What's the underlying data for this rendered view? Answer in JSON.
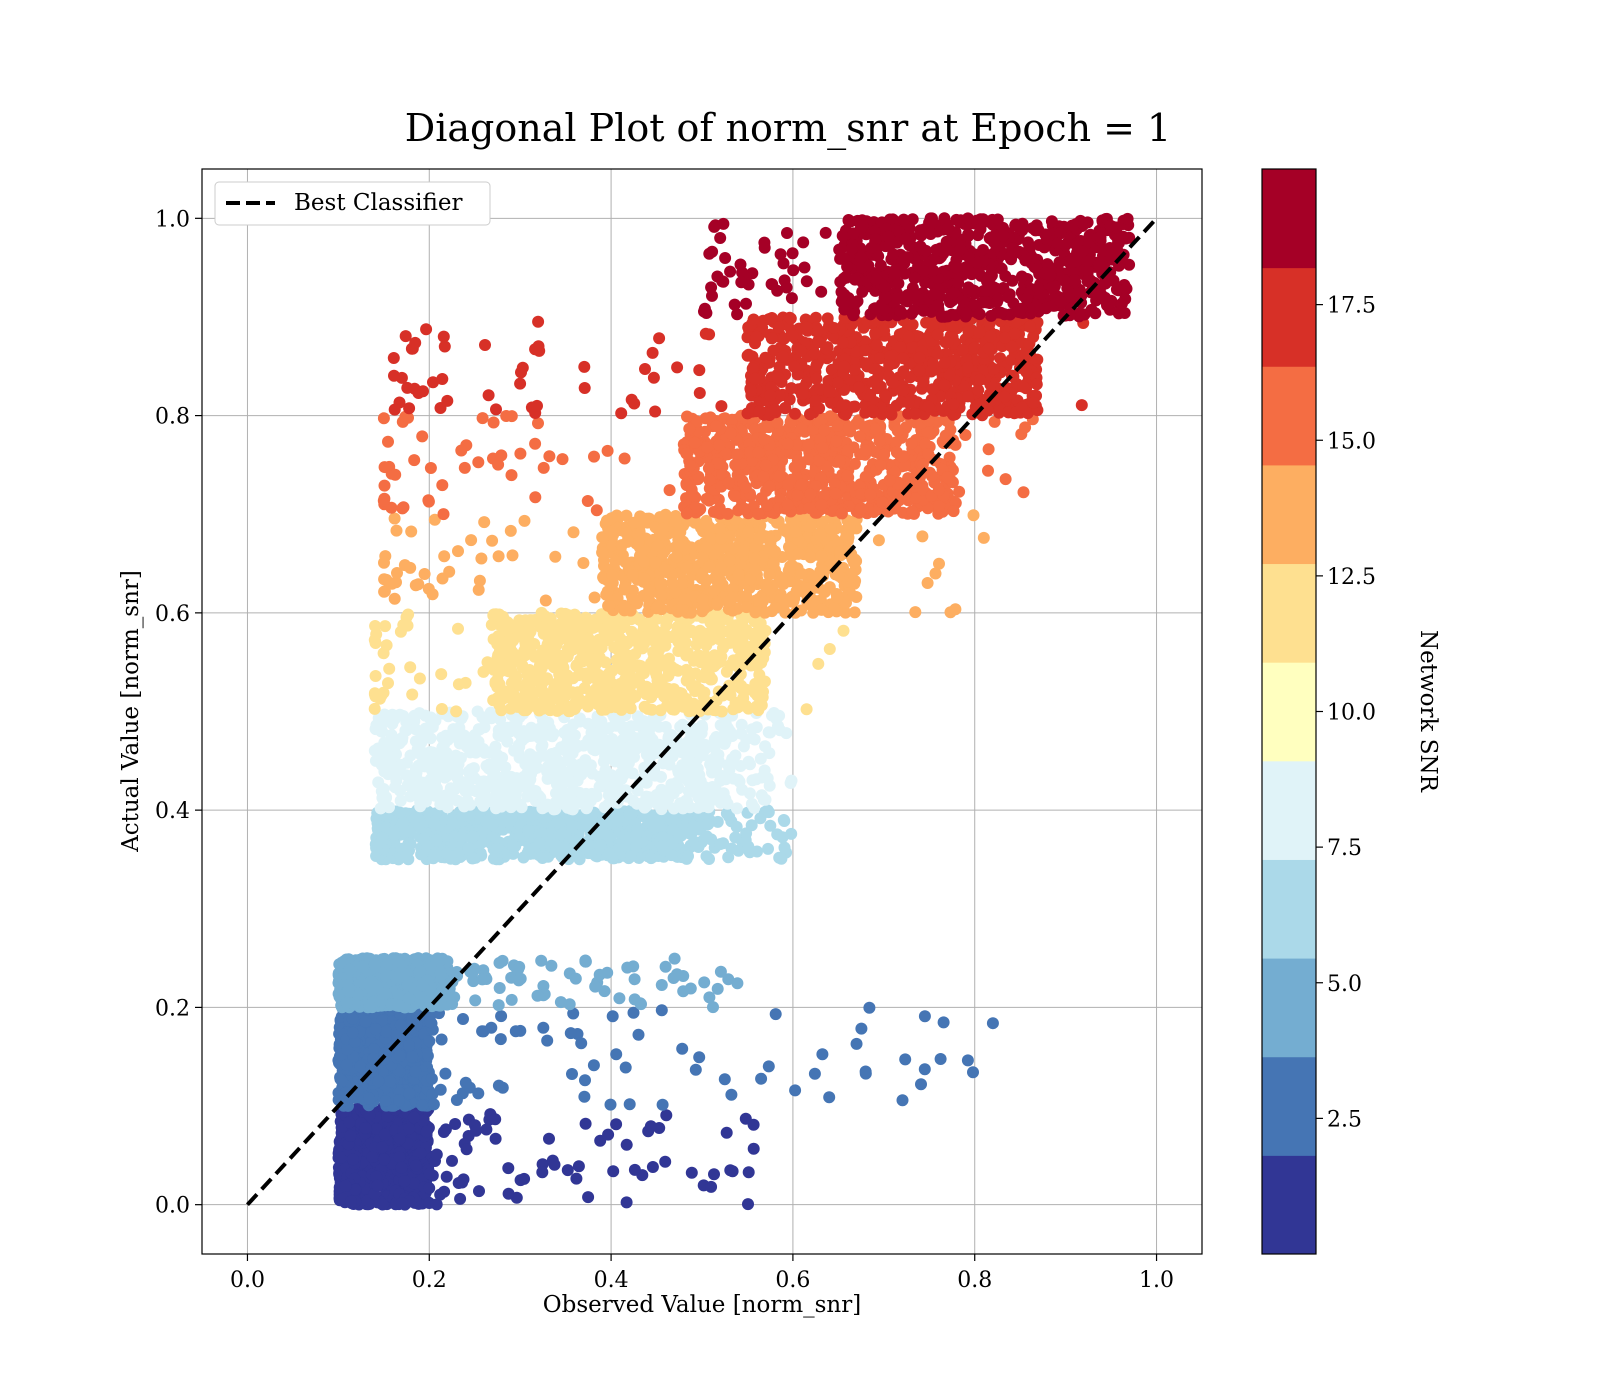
{
  "chart_data": {
    "type": "scatter",
    "title": "Diagonal Plot of norm_snr at Epoch = 1",
    "xlabel": "Observed Value [norm_snr]",
    "ylabel": "Actual Value [norm_snr]",
    "xlim": [
      -0.05,
      1.05
    ],
    "ylim": [
      -0.05,
      1.05
    ],
    "xticks": [
      "0.0",
      "0.2",
      "0.4",
      "0.6",
      "0.8",
      "1.0"
    ],
    "yticks": [
      "0.0",
      "0.2",
      "0.4",
      "0.6",
      "0.8",
      "1.0"
    ],
    "grid": true,
    "legend": {
      "placement": "top-left",
      "entries": [
        {
          "label": "Best Classifier",
          "style": "dashed",
          "color": "#000000"
        }
      ]
    },
    "reference_line": {
      "x": [
        0.0,
        1.0
      ],
      "y": [
        0.0,
        1.0
      ]
    },
    "colorbar": {
      "label": "Network SNR",
      "range": [
        0,
        20
      ],
      "tick_values": [
        2.5,
        5.0,
        7.5,
        10.0,
        12.5,
        15.0,
        17.5
      ],
      "tick_labels": [
        "2.5",
        "5.0",
        "7.5",
        "10.0",
        "12.5",
        "15.0",
        "17.5"
      ],
      "colors": [
        "#313695",
        "#4575b4",
        "#74add1",
        "#abd9e9",
        "#e0f3f8",
        "#ffffbf",
        "#fee090",
        "#fdae61",
        "#f46d43",
        "#d73027",
        "#a50026"
      ]
    },
    "bands": [
      {
        "snr": 1,
        "y": [
          0.0,
          0.1
        ],
        "x_core": [
          0.1,
          0.2
        ],
        "x_scatter": [
          0.2,
          0.56
        ]
      },
      {
        "snr": 3,
        "y": [
          0.1,
          0.2
        ],
        "x_core": [
          0.1,
          0.2
        ],
        "x_scatter": [
          0.2,
          0.82
        ]
      },
      {
        "snr": 5,
        "y": [
          0.2,
          0.25
        ],
        "x_core": [
          0.1,
          0.22
        ],
        "x_scatter": [
          0.22,
          0.54
        ]
      },
      {
        "snr": 7,
        "y": [
          0.35,
          0.4
        ],
        "x_core": [
          0.14,
          0.48
        ],
        "x_scatter": [
          0.48,
          0.6
        ]
      },
      {
        "snr": 9,
        "y": [
          0.4,
          0.5
        ],
        "x_core": [
          0.14,
          0.52
        ],
        "x_scatter": [
          0.52,
          0.6
        ]
      },
      {
        "snr": 11,
        "y": [
          0.5,
          0.6
        ],
        "x_core": [
          0.27,
          0.57
        ],
        "x_scatter": [
          0.14,
          0.66
        ]
      },
      {
        "snr": 13,
        "y": [
          0.6,
          0.7
        ],
        "x_core": [
          0.39,
          0.67
        ],
        "x_scatter": [
          0.15,
          0.8
        ]
      },
      {
        "snr": 15,
        "y": [
          0.7,
          0.8
        ],
        "x_core": [
          0.48,
          0.78
        ],
        "x_scatter": [
          0.15,
          0.87
        ]
      },
      {
        "snr": 17,
        "y": [
          0.8,
          0.9
        ],
        "x_core": [
          0.55,
          0.87
        ],
        "x_scatter": [
          0.16,
          0.92
        ]
      },
      {
        "snr": 19,
        "y": [
          0.9,
          1.0
        ],
        "x_core": [
          0.65,
          0.97
        ],
        "x_scatter": [
          0.5,
          0.98
        ]
      }
    ],
    "notable_points": [
      {
        "x": 0.162,
        "y": 0.806,
        "snr": 17
      },
      {
        "x": 0.52,
        "y": 0.98,
        "snr": 19
      },
      {
        "x": 0.51,
        "y": 0.93,
        "snr": 19
      },
      {
        "x": 0.59,
        "y": 0.39,
        "snr": 7
      },
      {
        "x": 0.82,
        "y": 0.184,
        "snr": 3
      },
      {
        "x": 0.67,
        "y": 0.163,
        "snr": 3
      },
      {
        "x": 0.68,
        "y": 0.135,
        "snr": 3
      },
      {
        "x": 0.51,
        "y": 0.018,
        "snr": 1
      },
      {
        "x": 0.81,
        "y": 0.676,
        "snr": 13
      }
    ]
  }
}
